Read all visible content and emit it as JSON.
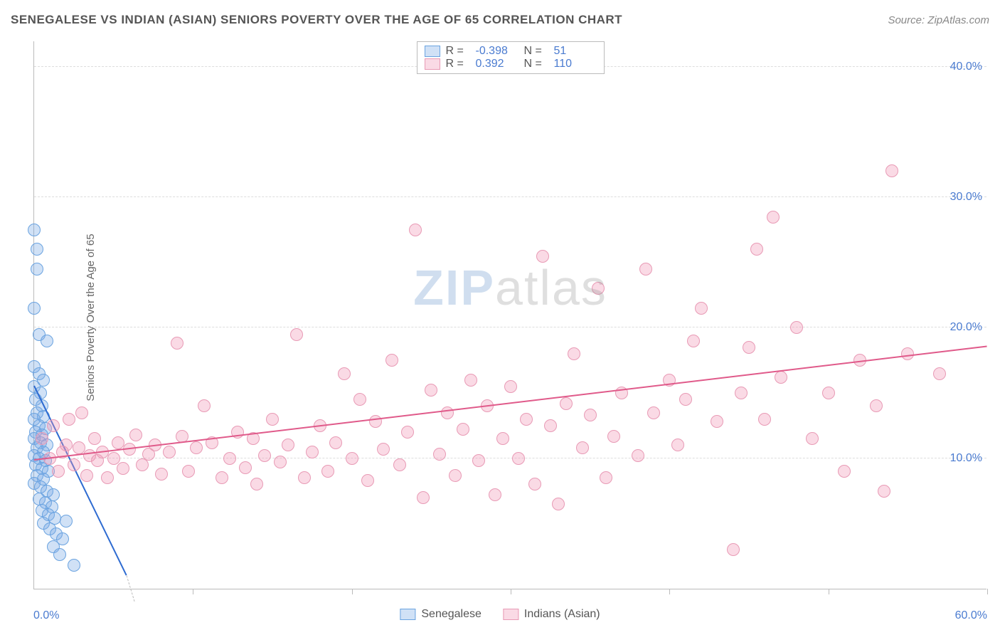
{
  "title": "SENEGALESE VS INDIAN (ASIAN) SENIORS POVERTY OVER THE AGE OF 65 CORRELATION CHART",
  "source_label": "Source: ZipAtlas.com",
  "y_axis_label": "Seniors Poverty Over the Age of 65",
  "watermark": {
    "part1": "ZIP",
    "part2": "atlas"
  },
  "chart": {
    "type": "scatter",
    "background_color": "#ffffff",
    "grid_color": "#dddddd",
    "axis_color": "#bbbbbb",
    "xlim": [
      0,
      60
    ],
    "ylim": [
      0,
      42
    ],
    "x_ticks": [
      0,
      10,
      20,
      30,
      40,
      50,
      60
    ],
    "y_gridlines": [
      10,
      20,
      30,
      40
    ],
    "y_tick_labels": [
      "10.0%",
      "20.0%",
      "30.0%",
      "40.0%"
    ],
    "x_min_label": "0.0%",
    "x_max_label": "60.0%",
    "marker_radius": 9,
    "marker_border_width": 1.5,
    "series": [
      {
        "name": "Senegalese",
        "fill_color": "rgba(120,170,230,0.35)",
        "border_color": "#6aa3e0",
        "trend_color": "#2e6bd1",
        "r_value": "-0.398",
        "n_value": "51",
        "trend": {
          "x1": 0,
          "y1": 15.5,
          "x2": 5.8,
          "y2": 1
        },
        "trend_dash": {
          "x1": 5.8,
          "y1": 1,
          "x2": 6.3,
          "y2": -1
        },
        "points": [
          [
            0.0,
            27.5
          ],
          [
            0.2,
            26.0
          ],
          [
            0.2,
            24.5
          ],
          [
            0.0,
            21.5
          ],
          [
            0.3,
            19.5
          ],
          [
            0.0,
            17.0
          ],
          [
            0.3,
            16.5
          ],
          [
            0.6,
            16.0
          ],
          [
            0.0,
            15.5
          ],
          [
            0.4,
            15.0
          ],
          [
            0.1,
            14.5
          ],
          [
            0.5,
            14.0
          ],
          [
            0.8,
            19.0
          ],
          [
            0.2,
            13.5
          ],
          [
            0.6,
            13.2
          ],
          [
            0.0,
            13.0
          ],
          [
            0.3,
            12.5
          ],
          [
            0.7,
            12.3
          ],
          [
            0.1,
            12.0
          ],
          [
            0.5,
            11.8
          ],
          [
            0.0,
            11.5
          ],
          [
            0.4,
            11.2
          ],
          [
            0.8,
            11.0
          ],
          [
            0.2,
            10.8
          ],
          [
            0.6,
            10.5
          ],
          [
            0.0,
            10.2
          ],
          [
            0.3,
            10.0
          ],
          [
            0.7,
            9.8
          ],
          [
            0.1,
            9.5
          ],
          [
            0.5,
            9.2
          ],
          [
            0.9,
            9.0
          ],
          [
            0.2,
            8.7
          ],
          [
            0.6,
            8.4
          ],
          [
            0.0,
            8.1
          ],
          [
            0.4,
            7.8
          ],
          [
            0.8,
            7.5
          ],
          [
            1.2,
            7.2
          ],
          [
            0.3,
            6.9
          ],
          [
            0.7,
            6.6
          ],
          [
            1.1,
            6.3
          ],
          [
            0.5,
            6.0
          ],
          [
            0.9,
            5.7
          ],
          [
            1.3,
            5.4
          ],
          [
            0.6,
            5.0
          ],
          [
            1.0,
            4.6
          ],
          [
            1.4,
            4.2
          ],
          [
            1.8,
            3.8
          ],
          [
            1.2,
            3.2
          ],
          [
            1.6,
            2.6
          ],
          [
            2.5,
            1.8
          ],
          [
            2.0,
            5.2
          ]
        ]
      },
      {
        "name": "Indians (Asian)",
        "fill_color": "rgba(240,150,180,0.35)",
        "border_color": "#e89ab5",
        "trend_color": "#e05a8a",
        "r_value": "0.392",
        "n_value": "110",
        "trend": {
          "x1": 0,
          "y1": 9.8,
          "x2": 60,
          "y2": 18.5
        },
        "points": [
          [
            0.5,
            11.5
          ],
          [
            1.0,
            10.0
          ],
          [
            1.2,
            12.5
          ],
          [
            1.5,
            9.0
          ],
          [
            1.8,
            10.5
          ],
          [
            2.0,
            11.0
          ],
          [
            2.2,
            13.0
          ],
          [
            2.5,
            9.5
          ],
          [
            2.8,
            10.8
          ],
          [
            3.0,
            13.5
          ],
          [
            3.3,
            8.7
          ],
          [
            3.5,
            10.2
          ],
          [
            3.8,
            11.5
          ],
          [
            4.0,
            9.8
          ],
          [
            4.3,
            10.5
          ],
          [
            4.6,
            8.5
          ],
          [
            5.0,
            10.0
          ],
          [
            5.3,
            11.2
          ],
          [
            5.6,
            9.2
          ],
          [
            6.0,
            10.7
          ],
          [
            6.4,
            11.8
          ],
          [
            6.8,
            9.5
          ],
          [
            7.2,
            10.3
          ],
          [
            7.6,
            11.0
          ],
          [
            8.0,
            8.8
          ],
          [
            8.5,
            10.5
          ],
          [
            9.0,
            18.8
          ],
          [
            9.3,
            11.7
          ],
          [
            9.7,
            9.0
          ],
          [
            10.2,
            10.8
          ],
          [
            10.7,
            14.0
          ],
          [
            11.2,
            11.2
          ],
          [
            11.8,
            8.5
          ],
          [
            12.3,
            10.0
          ],
          [
            12.8,
            12.0
          ],
          [
            13.3,
            9.3
          ],
          [
            13.8,
            11.5
          ],
          [
            14.0,
            8.0
          ],
          [
            14.5,
            10.2
          ],
          [
            15.0,
            13.0
          ],
          [
            15.5,
            9.7
          ],
          [
            16.0,
            11.0
          ],
          [
            16.5,
            19.5
          ],
          [
            17.0,
            8.5
          ],
          [
            17.5,
            10.5
          ],
          [
            18.0,
            12.5
          ],
          [
            18.5,
            9.0
          ],
          [
            19.0,
            11.2
          ],
          [
            19.5,
            16.5
          ],
          [
            20.0,
            10.0
          ],
          [
            20.5,
            14.5
          ],
          [
            21.0,
            8.3
          ],
          [
            21.5,
            12.8
          ],
          [
            22.0,
            10.7
          ],
          [
            22.5,
            17.5
          ],
          [
            23.0,
            9.5
          ],
          [
            23.5,
            12.0
          ],
          [
            24.0,
            27.5
          ],
          [
            24.5,
            7.0
          ],
          [
            25.0,
            15.2
          ],
          [
            25.5,
            10.3
          ],
          [
            26.0,
            13.5
          ],
          [
            26.5,
            8.7
          ],
          [
            27.0,
            12.2
          ],
          [
            27.5,
            16.0
          ],
          [
            28.0,
            9.8
          ],
          [
            28.5,
            14.0
          ],
          [
            29.0,
            7.2
          ],
          [
            29.5,
            11.5
          ],
          [
            30.0,
            15.5
          ],
          [
            30.5,
            10.0
          ],
          [
            31.0,
            13.0
          ],
          [
            31.5,
            8.0
          ],
          [
            32.0,
            25.5
          ],
          [
            32.5,
            12.5
          ],
          [
            33.0,
            6.5
          ],
          [
            33.5,
            14.2
          ],
          [
            34.0,
            18.0
          ],
          [
            34.5,
            10.8
          ],
          [
            35.0,
            13.3
          ],
          [
            35.5,
            23.0
          ],
          [
            36.0,
            8.5
          ],
          [
            36.5,
            11.7
          ],
          [
            37.0,
            15.0
          ],
          [
            38.5,
            24.5
          ],
          [
            38.0,
            10.2
          ],
          [
            39.0,
            13.5
          ],
          [
            40.0,
            16.0
          ],
          [
            40.5,
            11.0
          ],
          [
            41.0,
            14.5
          ],
          [
            41.5,
            19.0
          ],
          [
            42.0,
            21.5
          ],
          [
            43.0,
            12.8
          ],
          [
            44.0,
            3.0
          ],
          [
            44.5,
            15.0
          ],
          [
            45.0,
            18.5
          ],
          [
            45.5,
            26.0
          ],
          [
            46.0,
            13.0
          ],
          [
            47.0,
            16.2
          ],
          [
            48.0,
            20.0
          ],
          [
            46.5,
            28.5
          ],
          [
            49.0,
            11.5
          ],
          [
            50.0,
            15.0
          ],
          [
            51.0,
            9.0
          ],
          [
            52.0,
            17.5
          ],
          [
            53.0,
            14.0
          ],
          [
            53.5,
            7.5
          ],
          [
            55.0,
            18.0
          ],
          [
            54.0,
            32.0
          ],
          [
            57.0,
            16.5
          ]
        ]
      }
    ]
  },
  "legend_top": {
    "r_label": "R =",
    "n_label": "N ="
  },
  "legend_bottom_labels": [
    "Senegalese",
    "Indians (Asian)"
  ]
}
